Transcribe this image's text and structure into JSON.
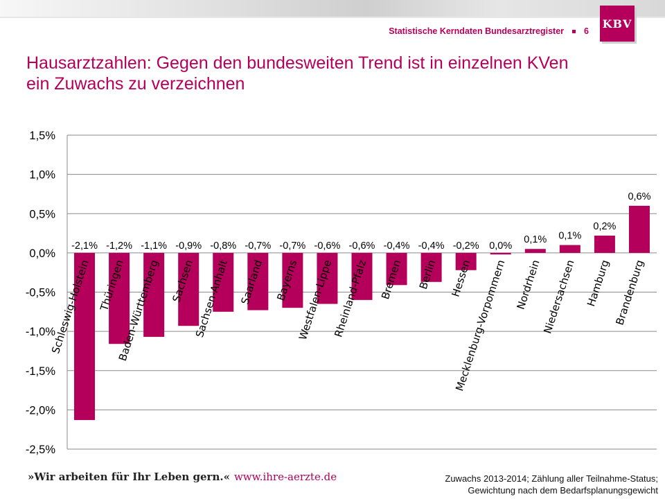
{
  "header": {
    "source_label": "Statistische Kerndaten Bundesarztregister",
    "page_number": "6",
    "logo_text": "KBV"
  },
  "title": {
    "line1": "Hausarztzahlen: Gegen den bundesweiten Trend ist in einzelnen KVen",
    "line2": "ein Zuwachs zu verzeichnen"
  },
  "chart_data": {
    "type": "bar",
    "title": "",
    "xlabel": "",
    "ylabel": "",
    "ylim": [
      -2.5,
      1.5
    ],
    "yticks": [
      1.5,
      1.0,
      0.5,
      0.0,
      -0.5,
      -1.0,
      -1.5,
      -2.0,
      -2.5
    ],
    "ytick_labels": [
      "1,5%",
      "1,0%",
      "0,5%",
      "0,0%",
      "-0,5%",
      "-1,0%",
      "-1,5%",
      "-2,0%",
      "-2,5%"
    ],
    "grid": true,
    "bar_color": "#b4005a",
    "categories": [
      "Schleswig-Holstein",
      "Thüringen",
      "Baden-Württemberg",
      "Sachsen",
      "Sachsen-Anhalt",
      "Saarland",
      "Bayerns",
      "Westfalen-Lippe",
      "Rheinland-Pfalz",
      "Bremen",
      "Berlin",
      "Hessen",
      "Mecklenburg-Vorpommern",
      "Nordrhein",
      "Niedersachsen",
      "Hamburg",
      "Brandenburg"
    ],
    "values": [
      -2.13,
      -1.16,
      -1.07,
      -0.93,
      -0.75,
      -0.73,
      -0.7,
      -0.65,
      -0.6,
      -0.41,
      -0.37,
      -0.22,
      -0.02,
      0.05,
      0.1,
      0.22,
      0.6
    ],
    "data_labels": [
      "-2,1%",
      "-1,2%",
      "-1,1%",
      "-0,9%",
      "-0,8%",
      "-0,7%",
      "-0,7%",
      "-0,6%",
      "-0,6%",
      "-0,4%",
      "-0,4%",
      "-0,2%",
      "0,0%",
      "0,1%",
      "0,1%",
      "0,2%",
      "0,6%"
    ]
  },
  "footer": {
    "slogan": "»Wir arbeiten für Ihr Leben gern.«",
    "url": "www.ihre-aerzte.de",
    "note_line1": "Zuwachs 2013-2014; Zählung aller Teilnahme-Status;",
    "note_line2": "Gewichtung nach dem Bedarfsplanungsgewicht"
  }
}
